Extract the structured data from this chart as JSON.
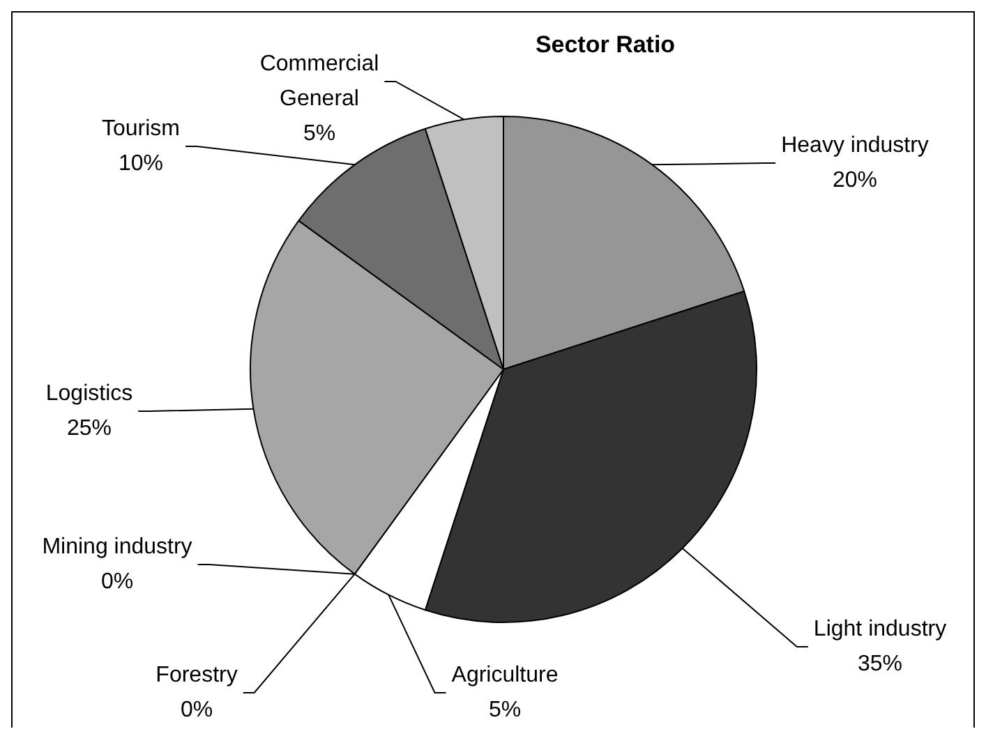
{
  "chart_data": {
    "type": "pie",
    "title": "Sector Ratio",
    "categories": [
      "Heavy industry",
      "Light industry",
      "Agriculture",
      "Forestry",
      "Mining industry",
      "Logistics",
      "Tourism",
      "Commercial General"
    ],
    "values": [
      20,
      35,
      5,
      0,
      0,
      25,
      10,
      5
    ],
    "value_labels": [
      "20%",
      "35%",
      "5%",
      "0%",
      "0%",
      "25%",
      "10%",
      "5%"
    ],
    "colors": [
      "#969696",
      "#333333",
      "#ffffff",
      "#e0e0e0",
      "#d0d0d0",
      "#a6a6a6",
      "#6e6e6e",
      "#c0c0c0"
    ]
  }
}
